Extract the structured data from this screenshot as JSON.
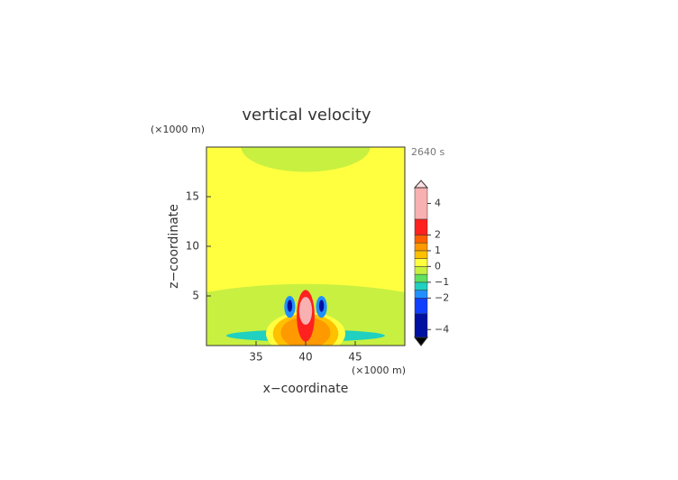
{
  "chart_data": {
    "type": "contour",
    "title": "vertical velocity",
    "xlabel": "x−coordinate",
    "ylabel": "z−coordinate",
    "xunit": "(×1000 m)",
    "yunit": "(×1000 m)",
    "time_label": "2640 s",
    "xlim": [
      30,
      50
    ],
    "ylim": [
      0,
      20
    ],
    "xticks": [
      35,
      40,
      45
    ],
    "yticks": [
      5,
      10,
      15
    ],
    "field": [
      {
        "level": 0.25,
        "x": 40,
        "z": 10,
        "rx": 20,
        "rz": 20
      },
      {
        "level": -0.25,
        "x": 40,
        "z": 20,
        "rx": 6.5,
        "rz": 2.5
      },
      {
        "level": -0.25,
        "x": 40,
        "z": 0,
        "rx": 20,
        "rz": 6.2
      },
      {
        "level": -1.25,
        "x": 40,
        "z": 1.0,
        "rx": 8,
        "rz": 0.6
      },
      {
        "level": 0.25,
        "x": 40,
        "z": 1.2,
        "rx": 4,
        "rz": 2.2
      },
      {
        "level": 0.75,
        "x": 40,
        "z": 1.2,
        "rx": 3.3,
        "rz": 2.0
      },
      {
        "level": 1.25,
        "x": 40,
        "z": 1.3,
        "rx": 2.5,
        "rz": 1.6
      },
      {
        "level": 2.5,
        "x": 40,
        "z": 3.0,
        "rx": 0.9,
        "rz": 2.6
      },
      {
        "level": -1.75,
        "x": 38.4,
        "z": 3.9,
        "rx": 0.55,
        "rz": 1.1
      },
      {
        "level": -1.75,
        "x": 41.6,
        "z": 3.9,
        "rx": 0.55,
        "rz": 1.1
      },
      {
        "level": -3.5,
        "x": 38.4,
        "z": 4.0,
        "rx": 0.25,
        "rz": 0.6
      },
      {
        "level": -3.5,
        "x": 41.6,
        "z": 4.0,
        "rx": 0.25,
        "rz": 0.6
      },
      {
        "level": 4,
        "x": 40,
        "z": 3.5,
        "rx": 0.65,
        "rz": 1.4
      }
    ],
    "colorbar": {
      "bounds": [
        -4.5,
        -3,
        -2,
        -1.5,
        -1,
        -0.5,
        0,
        0.5,
        1,
        1.5,
        2,
        3,
        5
      ],
      "colors": [
        "#0010a0",
        "#1040ff",
        "#2090ff",
        "#20d0c0",
        "#60e060",
        "#c8f040",
        "#ffff40",
        "#ffc000",
        "#ff9900",
        "#ff6000",
        "#ff2020",
        "#f8b0b0"
      ],
      "under_color": "#000000",
      "over_color": "#ffe0e0",
      "ticks": [
        4,
        2,
        1,
        0,
        {
          "value": -1,
          "label": "−1"
        },
        {
          "value": -2,
          "label": "−2"
        },
        {
          "value": -4,
          "label": "−4"
        }
      ]
    }
  }
}
